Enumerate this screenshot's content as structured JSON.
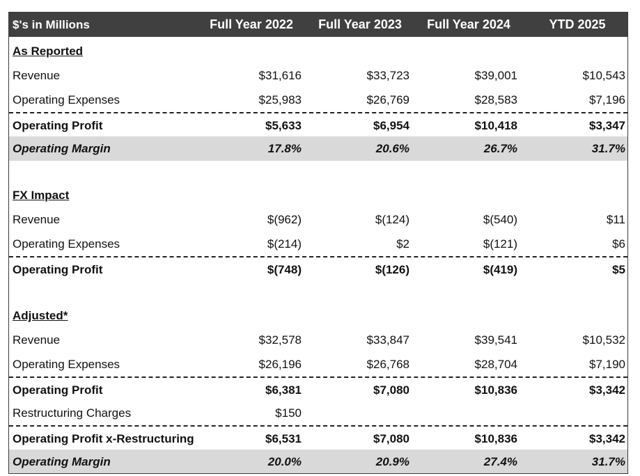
{
  "header": {
    "label": "$'s in Millions",
    "columns": [
      "Full Year 2022",
      "Full Year 2023",
      "Full Year 2024",
      "YTD 2025"
    ]
  },
  "as_reported": {
    "title": "As Reported",
    "revenue": {
      "label": "Revenue",
      "values": [
        "$31,616",
        "$33,723",
        "$39,001",
        "$10,543"
      ]
    },
    "operating_expenses": {
      "label": "Operating Expenses",
      "values": [
        "$25,983",
        "$26,769",
        "$28,583",
        "$7,196"
      ]
    },
    "operating_profit": {
      "label": "Operating Profit",
      "values": [
        "$5,633",
        "$6,954",
        "$10,418",
        "$3,347"
      ]
    },
    "operating_margin": {
      "label": "Operating Margin",
      "values": [
        "17.8%",
        "20.6%",
        "26.7%",
        "31.7%"
      ]
    }
  },
  "fx_impact": {
    "title": "FX Impact",
    "revenue": {
      "label": "Revenue",
      "values": [
        "$(962)",
        "$(124)",
        "$(540)",
        "$11"
      ]
    },
    "operating_expenses": {
      "label": "Operating Expenses",
      "values": [
        "$(214)",
        "$2",
        "$(121)",
        "$6"
      ]
    },
    "operating_profit": {
      "label": "Operating Profit",
      "values": [
        "$(748)",
        "$(126)",
        "$(419)",
        "$5"
      ]
    }
  },
  "adjusted": {
    "title": "Adjusted*",
    "revenue": {
      "label": "Revenue",
      "values": [
        "$32,578",
        "$33,847",
        "$39,541",
        "$10,532"
      ]
    },
    "operating_expenses": {
      "label": "Operating Expenses",
      "values": [
        "$26,196",
        "$26,768",
        "$28,704",
        "$7,190"
      ]
    },
    "operating_profit": {
      "label": "Operating Profit",
      "values": [
        "$6,381",
        "$7,080",
        "$10,836",
        "$3,342"
      ]
    },
    "restructuring_charges": {
      "label": "Restructuring Charges",
      "values": [
        "$150",
        "",
        "",
        ""
      ]
    },
    "operating_profit_x_restructuring": {
      "label": "Operating Profit x-Restructuring",
      "values": [
        "$6,531",
        "$7,080",
        "$10,836",
        "$3,342"
      ]
    },
    "operating_margin": {
      "label": "Operating Margin",
      "values": [
        "20.0%",
        "20.9%",
        "27.4%",
        "31.7%"
      ]
    }
  }
}
